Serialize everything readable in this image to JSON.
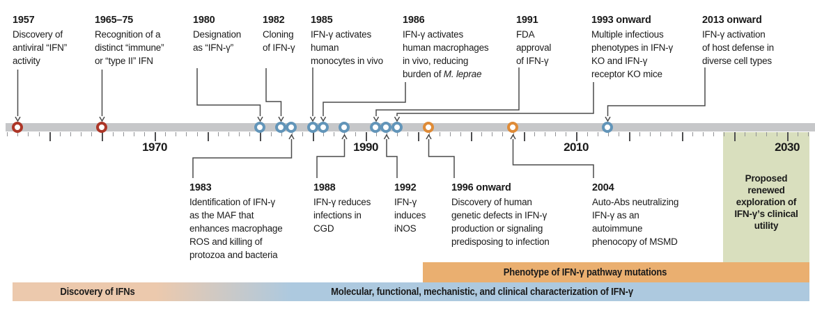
{
  "colors": {
    "bar": "#c6c7c9",
    "tick_minor": "#909194",
    "tick_major": "#4e4e50",
    "connector_line": "#4a4a4a",
    "marker_red": "#ad3627",
    "marker_blue": "#6295b9",
    "marker_orange": "#df8b37",
    "band_tan": "#ecc9ad",
    "band_blue": "#adc9df",
    "band_orange": "#eaaf70",
    "future_green": "#d9dfbe",
    "text": "#1a1a1a"
  },
  "axis": {
    "labels": [
      "1970",
      "1990",
      "2010",
      "2030"
    ]
  },
  "timeline": {
    "markers": [
      {
        "year": 1957,
        "color": "red"
      },
      {
        "year": 1965,
        "color": "red"
      },
      {
        "year": 1980,
        "color": "blue"
      },
      {
        "year": 1982,
        "color": "blue"
      },
      {
        "year": 1983,
        "color": "blue"
      },
      {
        "year": 1985,
        "color": "blue"
      },
      {
        "year": 1986,
        "color": "blue"
      },
      {
        "year": 1988,
        "color": "blue"
      },
      {
        "year": 1991,
        "color": "blue"
      },
      {
        "year": 1992,
        "color": "blue"
      },
      {
        "year": 1993,
        "color": "blue"
      },
      {
        "year": 1996,
        "color": "orange"
      },
      {
        "year": 2004,
        "color": "orange"
      },
      {
        "year": 2013,
        "color": "blue"
      }
    ]
  },
  "events_top": [
    {
      "title": "1957",
      "lines": [
        "Discovery of",
        "antiviral “IFN”",
        "activity"
      ]
    },
    {
      "title": "1965–75",
      "lines": [
        "Recognition of a",
        "distinct “immune”",
        "or “type II” IFN"
      ]
    },
    {
      "title": "1980",
      "lines": [
        "Designation",
        "as “IFN-γ”"
      ]
    },
    {
      "title": "1982",
      "lines": [
        "Cloning",
        "of IFN-γ"
      ]
    },
    {
      "title": "1985",
      "lines": [
        "IFN-γ activates",
        "human",
        "monocytes in vivo"
      ]
    },
    {
      "title": "1986",
      "lines": [
        "IFN-γ activates",
        "human macrophages",
        "in vivo, reducing",
        "burden of <i>M. leprae</i>"
      ]
    },
    {
      "title": "1991",
      "lines": [
        "FDA",
        "approval",
        "of IFN-γ"
      ]
    },
    {
      "title": "1993 onward",
      "lines": [
        "Multiple infectious",
        "phenotypes in IFN-γ",
        "KO and IFN-γ",
        "receptor KO mice"
      ]
    },
    {
      "title": "2013 onward",
      "lines": [
        "IFN-γ activation",
        "of host defense in",
        "diverse cell types"
      ]
    }
  ],
  "events_bottom": [
    {
      "title": "1983",
      "lines": [
        "Identification of IFN-γ",
        "as the MAF that",
        "enhances macrophage",
        "ROS and killing of",
        "protozoa and bacteria"
      ]
    },
    {
      "title": "1988",
      "lines": [
        "IFN-γ reduces",
        "infections in",
        "CGD"
      ]
    },
    {
      "title": "1992",
      "lines": [
        "IFN-γ",
        "induces",
        "iNOS"
      ]
    },
    {
      "title": "1996 onward",
      "lines": [
        "Discovery of human",
        "genetic defects in IFN-γ",
        "production or signaling",
        "predisposing to infection"
      ]
    },
    {
      "title": "2004",
      "lines": [
        "Auto-Abs neutralizing",
        "IFN-γ as an",
        "autoimmune",
        "phenocopy of MSMD"
      ]
    }
  ],
  "bands": {
    "discovery": "Discovery of IFNs",
    "molecular": "Molecular, functional, mechanistic, and clinical characterization of IFN-γ",
    "phenotype": "Phenotype of IFN-γ pathway mutations"
  },
  "future_box": {
    "text": "Proposed renewed exploration of IFN-γ’s clinical utility"
  }
}
